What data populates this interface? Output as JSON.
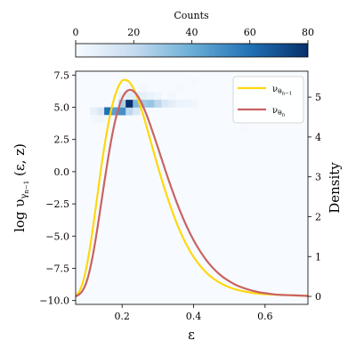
{
  "chart_data": {
    "type": "line",
    "colorbar": {
      "label": "Counts",
      "range": [
        0,
        80
      ],
      "ticks": [
        0,
        20,
        40,
        60,
        80
      ],
      "tick_labels": [
        "0",
        "20",
        "40",
        "60",
        "80"
      ],
      "colormap": "Blues"
    },
    "heatmap": {
      "label": "2D histogram of log υ vs ε",
      "cells": [
        {
          "x0": 0.13,
          "x1": 0.15,
          "y0": 4.4,
          "y1": 5.0,
          "count": 12
        },
        {
          "x0": 0.15,
          "x1": 0.17,
          "y0": 4.4,
          "y1": 5.0,
          "count": 60
        },
        {
          "x0": 0.17,
          "x1": 0.19,
          "y0": 4.4,
          "y1": 5.0,
          "count": 45
        },
        {
          "x0": 0.19,
          "x1": 0.21,
          "y0": 4.4,
          "y1": 5.0,
          "count": 50
        },
        {
          "x0": 0.21,
          "x1": 0.23,
          "y0": 4.4,
          "y1": 5.0,
          "count": 22
        },
        {
          "x0": 0.23,
          "x1": 0.25,
          "y0": 4.4,
          "y1": 5.0,
          "count": 12
        },
        {
          "x0": 0.11,
          "x1": 0.13,
          "y0": 4.4,
          "y1": 5.0,
          "count": 6
        },
        {
          "x0": 0.19,
          "x1": 0.21,
          "y0": 5.0,
          "y1": 5.6,
          "count": 25
        },
        {
          "x0": 0.21,
          "x1": 0.23,
          "y0": 5.0,
          "y1": 5.6,
          "count": 80
        },
        {
          "x0": 0.23,
          "x1": 0.25,
          "y0": 5.0,
          "y1": 5.6,
          "count": 35
        },
        {
          "x0": 0.25,
          "x1": 0.27,
          "y0": 5.0,
          "y1": 5.6,
          "count": 28
        },
        {
          "x0": 0.27,
          "x1": 0.29,
          "y0": 5.0,
          "y1": 5.6,
          "count": 30
        },
        {
          "x0": 0.29,
          "x1": 0.31,
          "y0": 5.0,
          "y1": 5.6,
          "count": 22
        },
        {
          "x0": 0.31,
          "x1": 0.33,
          "y0": 5.0,
          "y1": 5.6,
          "count": 12
        },
        {
          "x0": 0.33,
          "x1": 0.35,
          "y0": 5.0,
          "y1": 5.6,
          "count": 8
        },
        {
          "x0": 0.35,
          "x1": 0.37,
          "y0": 5.0,
          "y1": 5.6,
          "count": 5
        },
        {
          "x0": 0.37,
          "x1": 0.39,
          "y0": 5.0,
          "y1": 5.6,
          "count": 4
        },
        {
          "x0": 0.39,
          "x1": 0.41,
          "y0": 5.0,
          "y1": 5.6,
          "count": 3
        },
        {
          "x0": 0.19,
          "x1": 0.21,
          "y0": 5.6,
          "y1": 6.2,
          "count": 4
        },
        {
          "x0": 0.21,
          "x1": 0.23,
          "y0": 5.6,
          "y1": 6.2,
          "count": 8
        },
        {
          "x0": 0.23,
          "x1": 0.25,
          "y0": 5.6,
          "y1": 6.2,
          "count": 9
        },
        {
          "x0": 0.25,
          "x1": 0.27,
          "y0": 5.6,
          "y1": 6.2,
          "count": 7
        },
        {
          "x0": 0.27,
          "x1": 0.29,
          "y0": 5.6,
          "y1": 6.2,
          "count": 5
        },
        {
          "x0": 0.29,
          "x1": 0.31,
          "y0": 5.6,
          "y1": 6.2,
          "count": 3
        },
        {
          "x0": 0.21,
          "x1": 0.23,
          "y0": 6.2,
          "y1": 6.8,
          "count": 2
        },
        {
          "x0": 0.25,
          "x1": 0.27,
          "y0": 6.2,
          "y1": 6.8,
          "count": 2
        },
        {
          "x0": 0.11,
          "x1": 0.13,
          "y0": 3.8,
          "y1": 4.4,
          "count": 2
        },
        {
          "x0": 0.13,
          "x1": 0.15,
          "y0": 3.8,
          "y1": 4.4,
          "count": 3
        },
        {
          "x0": 0.15,
          "x1": 0.17,
          "y0": 3.8,
          "y1": 4.4,
          "count": 2
        },
        {
          "x0": 0.33,
          "x1": 0.35,
          "y0": 5.6,
          "y1": 6.2,
          "count": 2
        },
        {
          "x0": 0.39,
          "x1": 0.41,
          "y0": 6.8,
          "y1": 7.4,
          "count": 1
        },
        {
          "x0": 0.53,
          "x1": 0.55,
          "y0": 3.2,
          "y1": 3.8,
          "count": 1
        },
        {
          "x0": 0.35,
          "x1": 0.37,
          "y0": 6.2,
          "y1": 6.8,
          "count": 1
        }
      ]
    },
    "x_axis": {
      "label": "ε",
      "range": [
        0.07,
        0.72
      ],
      "ticks": [
        0.2,
        0.4,
        0.6
      ],
      "tick_labels": [
        "0.2",
        "0.4",
        "0.6"
      ]
    },
    "y_left": {
      "label": "log υ_{γ_{n−1}}(ε, z)",
      "range": [
        -10.3,
        7.8
      ],
      "ticks": [
        7.5,
        5.0,
        2.5,
        0.0,
        -2.5,
        -5.0,
        -7.5,
        -10.0
      ],
      "tick_labels": [
        "7.5",
        "5.0",
        "2.5",
        "0.0",
        "−2.5",
        "−5.0",
        "−7.5",
        "−10.0"
      ]
    },
    "y_right": {
      "label": "Density",
      "range": [
        -0.2,
        5.65
      ],
      "ticks": [
        0,
        1,
        2,
        3,
        4,
        5
      ],
      "tick_labels": [
        "0",
        "1",
        "2",
        "3",
        "4",
        "5"
      ]
    },
    "series": [
      {
        "name": "ν_{θ_{n−1}}",
        "color": "#ffd70f",
        "axis": "right",
        "x": [
          0.07,
          0.08,
          0.09,
          0.1,
          0.11,
          0.12,
          0.13,
          0.14,
          0.15,
          0.16,
          0.17,
          0.18,
          0.19,
          0.2,
          0.21,
          0.22,
          0.23,
          0.24,
          0.25,
          0.26,
          0.27,
          0.28,
          0.3,
          0.32,
          0.34,
          0.36,
          0.38,
          0.4,
          0.42,
          0.44,
          0.46,
          0.48,
          0.5,
          0.52,
          0.55,
          0.58,
          0.61,
          0.64,
          0.67,
          0.7,
          0.72
        ],
        "y": [
          0.02,
          0.12,
          0.35,
          0.72,
          1.22,
          1.82,
          2.48,
          3.14,
          3.74,
          4.26,
          4.7,
          5.03,
          5.27,
          5.41,
          5.43,
          5.38,
          5.25,
          5.05,
          4.8,
          4.52,
          4.21,
          3.89,
          3.26,
          2.67,
          2.14,
          1.68,
          1.3,
          0.99,
          0.75,
          0.56,
          0.42,
          0.31,
          0.23,
          0.17,
          0.11,
          0.07,
          0.05,
          0.04,
          0.03,
          0.02,
          0.02
        ]
      },
      {
        "name": "ν_{θ_n}",
        "color": "#c96363",
        "axis": "right",
        "x": [
          0.07,
          0.08,
          0.09,
          0.1,
          0.11,
          0.12,
          0.13,
          0.14,
          0.15,
          0.16,
          0.17,
          0.18,
          0.19,
          0.2,
          0.21,
          0.22,
          0.23,
          0.24,
          0.25,
          0.26,
          0.27,
          0.28,
          0.3,
          0.32,
          0.34,
          0.36,
          0.38,
          0.4,
          0.42,
          0.44,
          0.46,
          0.48,
          0.5,
          0.52,
          0.55,
          0.58,
          0.61,
          0.64,
          0.67,
          0.7,
          0.72
        ],
        "y": [
          0.0,
          0.05,
          0.15,
          0.35,
          0.68,
          1.12,
          1.66,
          2.25,
          2.85,
          3.42,
          3.94,
          4.38,
          4.72,
          4.97,
          5.12,
          5.18,
          5.16,
          5.07,
          4.93,
          4.74,
          4.52,
          4.27,
          3.74,
          3.19,
          2.67,
          2.19,
          1.77,
          1.41,
          1.11,
          0.86,
          0.66,
          0.5,
          0.38,
          0.28,
          0.18,
          0.11,
          0.07,
          0.04,
          0.03,
          0.02,
          0.01
        ]
      }
    ],
    "legend": {
      "placement": "top-right",
      "entries": [
        {
          "base": "ν",
          "sub": "θ",
          "subsub": "n−1",
          "color": "#ffd70f"
        },
        {
          "base": "ν",
          "sub": "θ",
          "subsub": "n",
          "color": "#c96363"
        }
      ]
    },
    "grid": false
  }
}
